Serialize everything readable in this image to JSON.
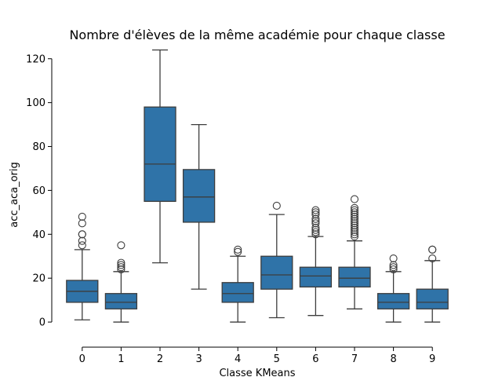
{
  "chart_data": {
    "type": "box",
    "title": "Nombre d'élèves de la même académie pour chaque classe",
    "xlabel": "Classe KMeans",
    "ylabel": "acc_aca_orig",
    "ylim": [
      -10,
      126
    ],
    "yticks": [
      0,
      20,
      40,
      60,
      80,
      100,
      120
    ],
    "grid": false,
    "box_color": "#2f73a8",
    "line_color": "#3d3d3d",
    "categories": [
      "0",
      "1",
      "2",
      "3",
      "4",
      "5",
      "6",
      "7",
      "8",
      "9"
    ],
    "boxes": [
      {
        "category": "0",
        "whisker_low": 1,
        "q1": 9,
        "median": 14,
        "q3": 19,
        "whisker_high": 33,
        "outliers": [
          35,
          37,
          40,
          40,
          45,
          48
        ]
      },
      {
        "category": "1",
        "whisker_low": 0,
        "q1": 6,
        "median": 9,
        "q3": 13,
        "whisker_high": 23,
        "outliers": [
          24,
          25,
          26,
          27,
          35
        ]
      },
      {
        "category": "2",
        "whisker_low": 27,
        "q1": 55,
        "median": 72,
        "q3": 98,
        "whisker_high": 124,
        "outliers": []
      },
      {
        "category": "3",
        "whisker_low": 15,
        "q1": 45.5,
        "median": 57,
        "q3": 69.5,
        "whisker_high": 90,
        "outliers": []
      },
      {
        "category": "4",
        "whisker_low": 0,
        "q1": 9,
        "median": 13,
        "q3": 18,
        "whisker_high": 30,
        "outliers": [
          32,
          33
        ]
      },
      {
        "category": "5",
        "whisker_low": 2,
        "q1": 15,
        "median": 21.5,
        "q3": 30,
        "whisker_high": 49,
        "outliers": [
          53
        ]
      },
      {
        "category": "6",
        "whisker_low": 3,
        "q1": 16,
        "median": 21,
        "q3": 25,
        "whisker_high": 39,
        "outliers": [
          40,
          41,
          42,
          43,
          45,
          46,
          47,
          49,
          50,
          51
        ]
      },
      {
        "category": "7",
        "whisker_low": 6,
        "q1": 16,
        "median": 20,
        "q3": 25,
        "whisker_high": 37,
        "outliers": [
          39,
          40,
          41,
          42,
          43,
          44,
          45,
          46,
          47,
          48,
          49,
          50,
          51,
          52,
          56
        ]
      },
      {
        "category": "8",
        "whisker_low": 0,
        "q1": 6,
        "median": 9,
        "q3": 13,
        "whisker_high": 23,
        "outliers": [
          24,
          25,
          26,
          29
        ]
      },
      {
        "category": "9",
        "whisker_low": 0,
        "q1": 6,
        "median": 9,
        "q3": 15,
        "whisker_high": 28,
        "outliers": [
          29,
          33,
          33
        ]
      }
    ]
  }
}
